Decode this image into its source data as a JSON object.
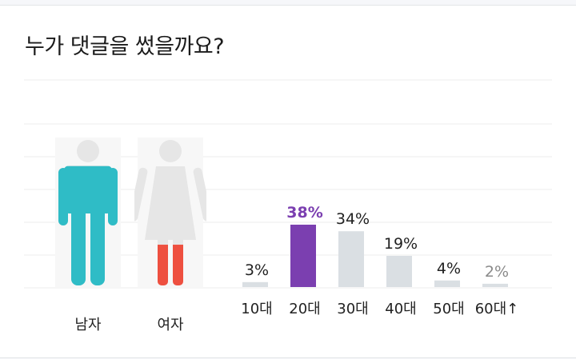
{
  "title": "누가 댓글을 썼을까요?",
  "colors": {
    "male": "#2fbcc6",
    "female": "#ee5040",
    "figure_empty": "#e6e6e6",
    "figure_bg": "#f7f7f7",
    "bar_default": "#dadfe3",
    "bar_highlight": "#7b3fb0",
    "grid": "#ececec",
    "label_default": "#222222",
    "label_faded": "#8a8a8a"
  },
  "chart_data": [
    {
      "type": "pictogram",
      "categories": [
        "남자",
        "여자"
      ],
      "fill_fraction": [
        0.82,
        0.28
      ],
      "icons": [
        "male-figure-icon",
        "female-figure-icon"
      ]
    },
    {
      "type": "bar",
      "categories": [
        "10대",
        "20대",
        "30대",
        "40대",
        "50대",
        "60대↑"
      ],
      "values": [
        3,
        38,
        34,
        19,
        4,
        2
      ],
      "value_labels": [
        "3%",
        "38%",
        "34%",
        "19%",
        "4%",
        "2%"
      ],
      "highlight": "20대",
      "ylim": [
        0,
        40
      ],
      "grid": true
    }
  ]
}
